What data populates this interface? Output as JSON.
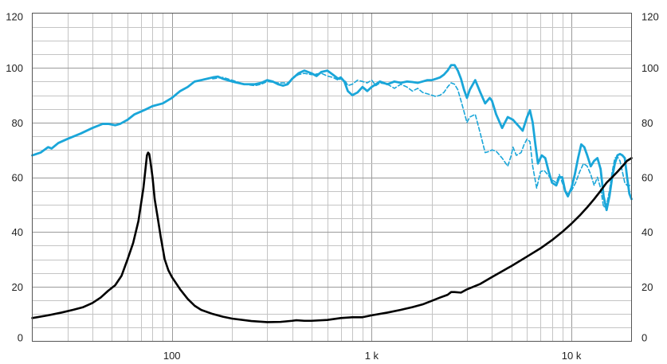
{
  "chart_data": {
    "type": "line",
    "title": "",
    "xlabel": "",
    "ylabel": "",
    "x_scale": "log",
    "xlim": [
      20,
      20000
    ],
    "ylim": [
      0,
      120
    ],
    "grid": true,
    "y_ticks": [
      0,
      20,
      40,
      60,
      80,
      100,
      120
    ],
    "x_ticks": [
      {
        "value": 100,
        "label": "100"
      },
      {
        "value": 1000,
        "label": "1 k"
      },
      {
        "value": 10000,
        "label": "10 k"
      }
    ],
    "colors": {
      "response": "#1aa6d9",
      "impedance": "#000000",
      "grid_major": "#9a9a9a",
      "grid_minor": "#c4c4c4"
    },
    "series": [
      {
        "style": "solid",
        "color": "#1aa6d9",
        "points": [
          [
            20,
            68
          ],
          [
            22,
            69
          ],
          [
            24,
            71
          ],
          [
            25,
            70.5
          ],
          [
            27,
            72.5
          ],
          [
            30,
            74
          ],
          [
            35,
            76
          ],
          [
            40,
            78
          ],
          [
            45,
            79.5
          ],
          [
            48,
            79.5
          ],
          [
            52,
            79
          ],
          [
            55,
            79.5
          ],
          [
            60,
            81
          ],
          [
            65,
            83
          ],
          [
            70,
            84
          ],
          [
            75,
            85
          ],
          [
            80,
            86
          ],
          [
            90,
            87
          ],
          [
            100,
            89
          ],
          [
            110,
            91.5
          ],
          [
            120,
            93
          ],
          [
            130,
            95
          ],
          [
            140,
            95.5
          ],
          [
            150,
            96
          ],
          [
            160,
            96.5
          ],
          [
            170,
            96.8
          ],
          [
            180,
            96
          ],
          [
            200,
            95
          ],
          [
            230,
            94
          ],
          [
            260,
            94
          ],
          [
            280,
            94.5
          ],
          [
            300,
            95.5
          ],
          [
            320,
            95
          ],
          [
            340,
            94
          ],
          [
            360,
            93.5
          ],
          [
            380,
            94
          ],
          [
            400,
            96
          ],
          [
            430,
            98
          ],
          [
            460,
            99
          ],
          [
            500,
            98
          ],
          [
            530,
            97
          ],
          [
            560,
            98.5
          ],
          [
            600,
            99
          ],
          [
            640,
            97.5
          ],
          [
            680,
            96
          ],
          [
            700,
            96.5
          ],
          [
            730,
            95
          ],
          [
            760,
            91.5
          ],
          [
            800,
            90
          ],
          [
            850,
            91
          ],
          [
            900,
            93
          ],
          [
            950,
            91.5
          ],
          [
            1000,
            93
          ],
          [
            1050,
            94
          ],
          [
            1100,
            95
          ],
          [
            1200,
            94
          ],
          [
            1300,
            95
          ],
          [
            1400,
            94.5
          ],
          [
            1500,
            95
          ],
          [
            1600,
            94.8
          ],
          [
            1700,
            94.5
          ],
          [
            1800,
            95
          ],
          [
            1900,
            95.5
          ],
          [
            2000,
            95.5
          ],
          [
            2100,
            96
          ],
          [
            2200,
            96.5
          ],
          [
            2300,
            97.5
          ],
          [
            2400,
            99
          ],
          [
            2500,
            101
          ],
          [
            2600,
            101
          ],
          [
            2700,
            99
          ],
          [
            2800,
            96
          ],
          [
            2900,
            92
          ],
          [
            3000,
            89
          ],
          [
            3100,
            92
          ],
          [
            3300,
            95.5
          ],
          [
            3500,
            91
          ],
          [
            3700,
            87
          ],
          [
            3900,
            89
          ],
          [
            4000,
            88
          ],
          [
            4200,
            83
          ],
          [
            4500,
            78
          ],
          [
            4800,
            82
          ],
          [
            5100,
            81
          ],
          [
            5400,
            79
          ],
          [
            5700,
            77
          ],
          [
            6000,
            82
          ],
          [
            6200,
            84.5
          ],
          [
            6400,
            80
          ],
          [
            6600,
            72
          ],
          [
            6800,
            65
          ],
          [
            7100,
            68
          ],
          [
            7400,
            67
          ],
          [
            7700,
            62
          ],
          [
            8000,
            58
          ],
          [
            8400,
            57
          ],
          [
            8700,
            60
          ],
          [
            9000,
            60
          ],
          [
            9300,
            55
          ],
          [
            9600,
            53
          ],
          [
            10000,
            56
          ],
          [
            10400,
            61
          ],
          [
            10800,
            67
          ],
          [
            11200,
            72
          ],
          [
            11600,
            71
          ],
          [
            12000,
            68
          ],
          [
            12500,
            64
          ],
          [
            13000,
            66
          ],
          [
            13500,
            67
          ],
          [
            14000,
            63
          ],
          [
            14500,
            53
          ],
          [
            15000,
            48
          ],
          [
            15500,
            53
          ],
          [
            16000,
            60
          ],
          [
            16500,
            65
          ],
          [
            17000,
            68
          ],
          [
            17500,
            68.5
          ],
          [
            18000,
            68
          ],
          [
            18500,
            67
          ],
          [
            19000,
            60
          ],
          [
            19500,
            54
          ],
          [
            20000,
            52
          ]
        ]
      },
      {
        "style": "dashed",
        "color": "#1aa6d9",
        "points": [
          [
            160,
            96
          ],
          [
            180,
            96.5
          ],
          [
            200,
            95.5
          ],
          [
            230,
            94
          ],
          [
            260,
            93.5
          ],
          [
            280,
            94
          ],
          [
            300,
            95
          ],
          [
            340,
            94.5
          ],
          [
            380,
            94.5
          ],
          [
            400,
            96
          ],
          [
            430,
            97.5
          ],
          [
            460,
            98
          ],
          [
            500,
            97.5
          ],
          [
            560,
            98
          ],
          [
            600,
            97
          ],
          [
            640,
            96.5
          ],
          [
            680,
            95.5
          ],
          [
            700,
            96
          ],
          [
            740,
            95
          ],
          [
            760,
            93.5
          ],
          [
            800,
            94
          ],
          [
            850,
            95.5
          ],
          [
            900,
            95
          ],
          [
            950,
            94.5
          ],
          [
            1000,
            95.5
          ],
          [
            1050,
            93.5
          ],
          [
            1100,
            94.5
          ],
          [
            1200,
            94
          ],
          [
            1300,
            92.5
          ],
          [
            1400,
            94
          ],
          [
            1500,
            93
          ],
          [
            1600,
            91.5
          ],
          [
            1700,
            92.5
          ],
          [
            1800,
            91
          ],
          [
            1900,
            90.5
          ],
          [
            2000,
            90
          ],
          [
            2100,
            89.5
          ],
          [
            2200,
            90
          ],
          [
            2300,
            91
          ],
          [
            2400,
            93
          ],
          [
            2500,
            94.5
          ],
          [
            2600,
            94
          ],
          [
            2700,
            92
          ],
          [
            2800,
            88
          ],
          [
            2900,
            84
          ],
          [
            3000,
            80
          ],
          [
            3100,
            82
          ],
          [
            3300,
            83
          ],
          [
            3500,
            76
          ],
          [
            3700,
            69
          ],
          [
            3900,
            69.5
          ],
          [
            4000,
            70
          ],
          [
            4200,
            69.5
          ],
          [
            4500,
            67
          ],
          [
            4800,
            64
          ],
          [
            5000,
            68
          ],
          [
            5100,
            71
          ],
          [
            5300,
            68
          ],
          [
            5600,
            69
          ],
          [
            5800,
            72
          ],
          [
            6000,
            74
          ],
          [
            6200,
            73
          ],
          [
            6400,
            64
          ],
          [
            6700,
            56
          ],
          [
            7000,
            62
          ],
          [
            7300,
            62.5
          ],
          [
            7600,
            61
          ],
          [
            8000,
            59
          ],
          [
            8400,
            58
          ],
          [
            8700,
            61
          ],
          [
            9000,
            58
          ],
          [
            9300,
            55
          ],
          [
            9600,
            54
          ],
          [
            10000,
            55
          ],
          [
            10500,
            58
          ],
          [
            11000,
            62
          ],
          [
            11500,
            65
          ],
          [
            12000,
            64
          ],
          [
            12500,
            61
          ],
          [
            13000,
            57
          ],
          [
            13500,
            60
          ],
          [
            14000,
            56
          ],
          [
            14500,
            49
          ],
          [
            15000,
            50
          ],
          [
            15500,
            55
          ],
          [
            16000,
            62
          ],
          [
            16500,
            67
          ],
          [
            17000,
            67.5
          ],
          [
            17500,
            66
          ],
          [
            18000,
            62
          ],
          [
            18500,
            58
          ],
          [
            19000,
            57
          ],
          [
            20000,
            57
          ]
        ]
      },
      {
        "style": "solid",
        "color": "#000000",
        "points": [
          [
            20,
            8.5
          ],
          [
            24,
            9.5
          ],
          [
            28,
            10.5
          ],
          [
            32,
            11.5
          ],
          [
            36,
            12.5
          ],
          [
            40,
            14
          ],
          [
            44,
            16
          ],
          [
            48,
            18.5
          ],
          [
            52,
            20.5
          ],
          [
            56,
            24
          ],
          [
            60,
            30
          ],
          [
            64,
            36
          ],
          [
            68,
            44
          ],
          [
            72,
            56
          ],
          [
            74,
            64
          ],
          [
            75,
            68
          ],
          [
            76,
            69
          ],
          [
            77,
            68.5
          ],
          [
            78,
            66
          ],
          [
            80,
            60
          ],
          [
            82,
            52
          ],
          [
            85,
            45
          ],
          [
            88,
            38
          ],
          [
            92,
            30
          ],
          [
            96,
            26
          ],
          [
            100,
            23.5
          ],
          [
            110,
            19
          ],
          [
            120,
            15.5
          ],
          [
            130,
            13
          ],
          [
            140,
            11.5
          ],
          [
            160,
            10
          ],
          [
            180,
            9
          ],
          [
            200,
            8.3
          ],
          [
            250,
            7.4
          ],
          [
            300,
            7
          ],
          [
            350,
            7.1
          ],
          [
            400,
            7.5
          ],
          [
            420,
            7.7
          ],
          [
            460,
            7.5
          ],
          [
            500,
            7.5
          ],
          [
            600,
            7.8
          ],
          [
            700,
            8.5
          ],
          [
            800,
            8.8
          ],
          [
            900,
            8.8
          ],
          [
            1000,
            9.5
          ],
          [
            1200,
            10.5
          ],
          [
            1400,
            11.5
          ],
          [
            1600,
            12.5
          ],
          [
            1800,
            13.5
          ],
          [
            2000,
            14.8
          ],
          [
            2200,
            16
          ],
          [
            2400,
            17
          ],
          [
            2500,
            18
          ],
          [
            2600,
            18
          ],
          [
            2800,
            17.8
          ],
          [
            3000,
            19
          ],
          [
            3500,
            21
          ],
          [
            4000,
            23.5
          ],
          [
            5000,
            27.5
          ],
          [
            6000,
            31
          ],
          [
            7000,
            34
          ],
          [
            8000,
            37
          ],
          [
            9000,
            40
          ],
          [
            10000,
            43
          ],
          [
            11000,
            46
          ],
          [
            12000,
            49
          ],
          [
            13000,
            52
          ],
          [
            14000,
            55
          ],
          [
            15000,
            58
          ],
          [
            16000,
            60
          ],
          [
            17000,
            62
          ],
          [
            18000,
            64
          ],
          [
            19000,
            66
          ],
          [
            20000,
            67
          ]
        ]
      }
    ]
  }
}
